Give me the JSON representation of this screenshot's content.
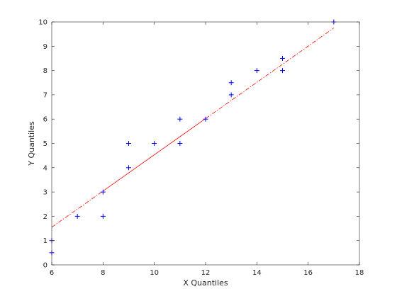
{
  "chart_data": {
    "type": "scatter",
    "xlabel": "X Quantiles",
    "ylabel": "Y Quantiles",
    "xlim": [
      6,
      18
    ],
    "ylim": [
      0,
      10
    ],
    "xticks": [
      "6",
      "8",
      "10",
      "12",
      "14",
      "16",
      "18"
    ],
    "yticks": [
      "0",
      "1",
      "2",
      "3",
      "4",
      "5",
      "6",
      "7",
      "8",
      "9",
      "10"
    ],
    "grid": false,
    "points": [
      {
        "x": 6,
        "y": 0.5
      },
      {
        "x": 6,
        "y": 1
      },
      {
        "x": 7,
        "y": 2
      },
      {
        "x": 8,
        "y": 2
      },
      {
        "x": 8,
        "y": 3
      },
      {
        "x": 9,
        "y": 4
      },
      {
        "x": 9,
        "y": 5
      },
      {
        "x": 10,
        "y": 5
      },
      {
        "x": 11,
        "y": 5
      },
      {
        "x": 11,
        "y": 6
      },
      {
        "x": 12,
        "y": 6
      },
      {
        "x": 13,
        "y": 7
      },
      {
        "x": 13,
        "y": 7.5
      },
      {
        "x": 14,
        "y": 8
      },
      {
        "x": 15,
        "y": 8
      },
      {
        "x": 15,
        "y": 8.5
      },
      {
        "x": 17,
        "y": 10
      }
    ],
    "reference_line": {
      "style": "dash-dot extended, solid between quartiles",
      "start": {
        "x": 6,
        "y": 1.55
      },
      "end": {
        "x": 17,
        "y": 9.75
      },
      "solid_from_x": 8,
      "solid_to_x": 12
    },
    "colors": {
      "points": "#0000ff",
      "line": "#ff0000",
      "axes": "#262626"
    }
  }
}
